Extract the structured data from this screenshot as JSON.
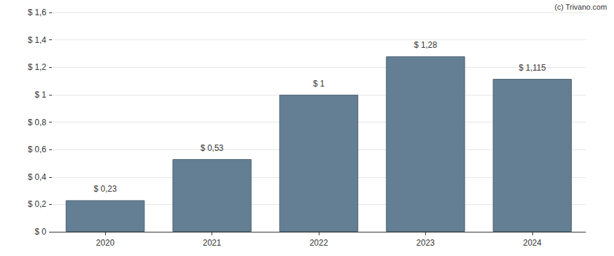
{
  "chart_data": {
    "type": "bar",
    "annotations": [
      "(c) Trivano.com"
    ],
    "categories": [
      "2020",
      "2021",
      "2022",
      "2023",
      "2024"
    ],
    "values": [
      0.23,
      0.53,
      1,
      1.28,
      1.115
    ],
    "value_labels": [
      "$ 0,23",
      "$ 0,53",
      "$ 1",
      "$ 1,28",
      "$ 1,115"
    ],
    "data_labels": true,
    "color": "#647f93",
    "ylim": [
      0,
      1.6
    ],
    "yticks": [
      {
        "value": 0,
        "label": "$ 0"
      },
      {
        "value": 0.2,
        "label": "$ 0,2"
      },
      {
        "value": 0.4,
        "label": "$ 0,4"
      },
      {
        "value": 0.6,
        "label": "$ 0,6"
      },
      {
        "value": 0.8,
        "label": "$ 0,8"
      },
      {
        "value": 1,
        "label": "$ 1"
      },
      {
        "value": 1.2,
        "label": "$ 1,2"
      },
      {
        "value": 1.4,
        "label": "$ 1,4"
      },
      {
        "value": 1.6,
        "label": "$ 1,6"
      }
    ],
    "grid": true
  }
}
